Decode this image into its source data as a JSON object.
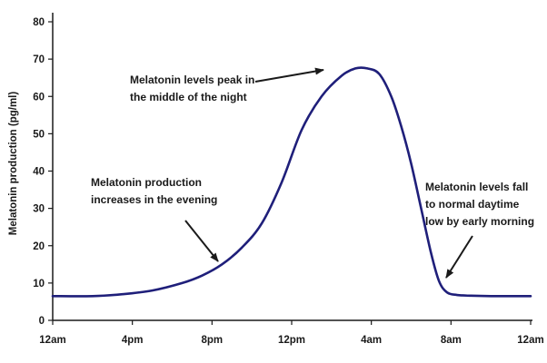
{
  "chart_data": {
    "type": "line",
    "title": "",
    "xlabel": "",
    "ylabel": "Melatonin production (pg/ml)",
    "ylim": [
      0,
      80
    ],
    "xlim": [
      0,
      24
    ],
    "yticks": [
      0,
      10,
      20,
      30,
      40,
      50,
      60,
      70,
      80
    ],
    "xticks": [
      {
        "value": 0,
        "label": "12am"
      },
      {
        "value": 4,
        "label": "4pm"
      },
      {
        "value": 8,
        "label": "8pm"
      },
      {
        "value": 12,
        "label": "12pm"
      },
      {
        "value": 16,
        "label": "4am"
      },
      {
        "value": 20,
        "label": "8am"
      },
      {
        "value": 24,
        "label": "12am"
      }
    ],
    "series": [
      {
        "name": "Melatonin",
        "color": "#1f1f7a",
        "x": [
          0,
          2,
          3.5,
          5,
          6.5,
          7.5,
          8.5,
          9.5,
          10.5,
          11.5,
          12.5,
          13.5,
          14.5,
          15.2,
          15.8,
          16.4,
          17,
          17.5,
          18,
          18.5,
          19,
          19.4,
          19.8,
          20.3,
          21,
          22,
          24
        ],
        "values": [
          6.5,
          6.5,
          7,
          8,
          10,
          12,
          15,
          19.5,
          26,
          37,
          51,
          60,
          65.5,
          67.5,
          67.5,
          66,
          60,
          52,
          42,
          30,
          18,
          10.5,
          7.5,
          6.8,
          6.6,
          6.5,
          6.5
        ]
      }
    ],
    "annotations": [
      {
        "lines": [
          "Melatonin levels peak in",
          "the middle of the night"
        ],
        "arrow_to": [
          15.2,
          67.5
        ]
      },
      {
        "lines": [
          "Melatonin production",
          "increases in the evening"
        ],
        "arrow_to": [
          8.0,
          14.5
        ]
      },
      {
        "lines": [
          "Melatonin levels fall",
          "to normal daytime",
          "low by early morning"
        ],
        "arrow_to": [
          19.6,
          8.5
        ]
      }
    ]
  }
}
